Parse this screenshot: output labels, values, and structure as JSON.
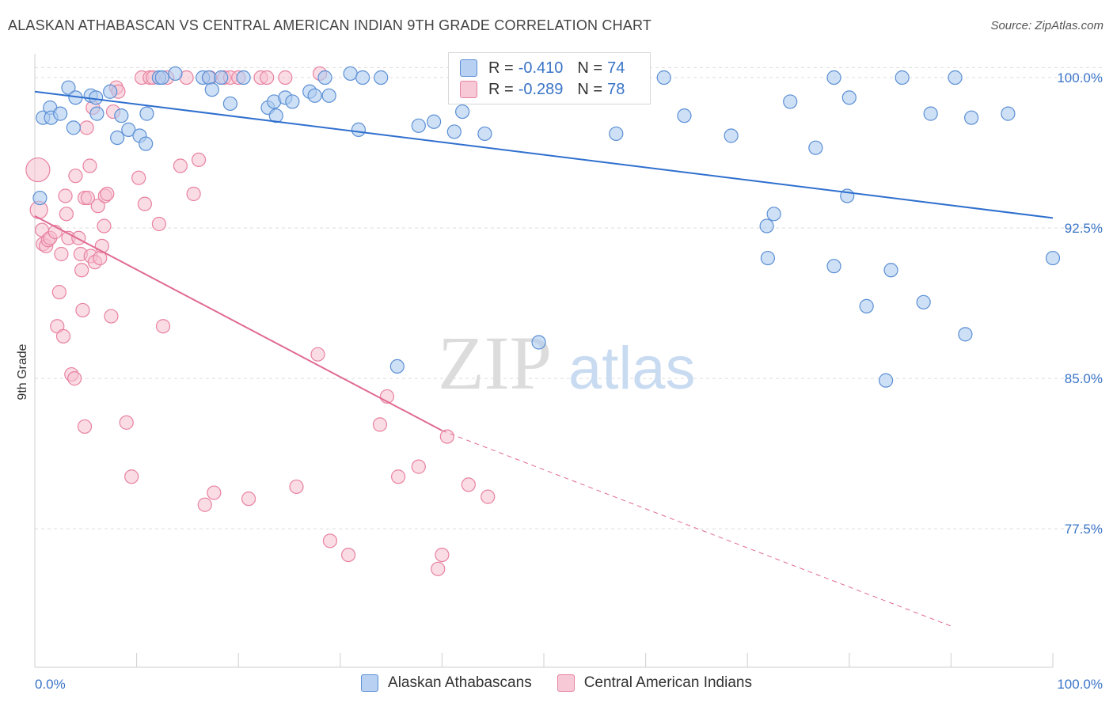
{
  "title": "ALASKAN ATHABASCAN VS CENTRAL AMERICAN INDIAN 9TH GRADE CORRELATION CHART",
  "source": "Source: ZipAtlas.com",
  "watermark": {
    "zip": "ZIP",
    "atlas": "atlas"
  },
  "colors": {
    "blue": "#5b8fd4",
    "blue_fill": "#aecbf0",
    "blue_line": "#2f6fce",
    "pink": "#e8829f",
    "pink_fill": "#f5c0d0",
    "pink_line": "#e06a92",
    "grid": "#dddddd",
    "axis_text": "#3a74c7"
  },
  "legend_top": {
    "r_label": "R =",
    "n_label": "N =",
    "blue": {
      "r": "-0.410",
      "n": "74"
    },
    "pink": {
      "r": "-0.289",
      "n": "78"
    }
  },
  "legend_bottom": {
    "blue": "Alaskan Athabascans",
    "pink": "Central American Indians"
  },
  "chart_data": {
    "type": "scatter",
    "title": "ALASKAN ATHABASCAN VS CENTRAL AMERICAN INDIAN 9TH GRADE CORRELATION CHART",
    "xlabel": "",
    "ylabel": "9th Grade",
    "xlim": [
      0,
      100
    ],
    "ylim": [
      70.6,
      101.5
    ],
    "x_tick_labels": [
      "0.0%",
      "100.0%"
    ],
    "y_ticks": [
      100.0,
      92.5,
      85.0,
      77.5
    ],
    "y_tick_labels": [
      "100.0%",
      "92.5%",
      "85.0%",
      "77.5%"
    ],
    "grid": true,
    "legend_position": "top-center",
    "series": [
      {
        "name": "Alaskan Athabascans",
        "r": -0.41,
        "n": 74,
        "trend": {
          "x": [
            0,
            100
          ],
          "y": [
            99.3,
            93.0
          ]
        },
        "points": [
          [
            0.5,
            94.0
          ],
          [
            0.8,
            98.0
          ],
          [
            1.5,
            98.5
          ],
          [
            1.6,
            98.0
          ],
          [
            2.5,
            98.2
          ],
          [
            3.3,
            99.5
          ],
          [
            3.8,
            97.5
          ],
          [
            4.0,
            99.0
          ],
          [
            5.5,
            99.1
          ],
          [
            6.0,
            99.0
          ],
          [
            6.1,
            98.2
          ],
          [
            7.4,
            99.3
          ],
          [
            8.1,
            97.0
          ],
          [
            8.5,
            98.1
          ],
          [
            9.2,
            97.4
          ],
          [
            10.3,
            97.1
          ],
          [
            10.9,
            96.7
          ],
          [
            11.0,
            98.2
          ],
          [
            12.2,
            100.0
          ],
          [
            12.5,
            100.0
          ],
          [
            13.8,
            100.2
          ],
          [
            16.5,
            100.0
          ],
          [
            17.1,
            100.0
          ],
          [
            17.4,
            99.4
          ],
          [
            18.3,
            100.0
          ],
          [
            19.2,
            98.7
          ],
          [
            20.5,
            100.0
          ],
          [
            22.9,
            98.5
          ],
          [
            23.5,
            98.8
          ],
          [
            23.7,
            98.1
          ],
          [
            24.6,
            99.0
          ],
          [
            25.3,
            98.8
          ],
          [
            27.0,
            99.3
          ],
          [
            27.5,
            99.1
          ],
          [
            28.5,
            100.0
          ],
          [
            28.9,
            99.1
          ],
          [
            31.0,
            100.2
          ],
          [
            31.8,
            97.4
          ],
          [
            32.2,
            100.0
          ],
          [
            34.0,
            100.0
          ],
          [
            35.6,
            85.6
          ],
          [
            37.7,
            97.6
          ],
          [
            39.2,
            97.8
          ],
          [
            41.2,
            97.3
          ],
          [
            42.0,
            98.3
          ],
          [
            44.2,
            97.2
          ],
          [
            49.5,
            86.8
          ],
          [
            51.2,
            100.0
          ],
          [
            53.0,
            100.0
          ],
          [
            57.1,
            97.2
          ],
          [
            59.0,
            99.5
          ],
          [
            61.8,
            100.0
          ],
          [
            63.8,
            98.1
          ],
          [
            68.4,
            97.1
          ],
          [
            72.0,
            91.0
          ],
          [
            71.9,
            92.6
          ],
          [
            72.6,
            93.2
          ],
          [
            74.2,
            98.8
          ],
          [
            76.7,
            96.5
          ],
          [
            78.5,
            90.6
          ],
          [
            78.5,
            100.0
          ],
          [
            79.8,
            94.1
          ],
          [
            80.0,
            99.0
          ],
          [
            81.7,
            88.6
          ],
          [
            83.6,
            84.9
          ],
          [
            84.1,
            90.4
          ],
          [
            85.2,
            100.0
          ],
          [
            87.3,
            88.8
          ],
          [
            88.0,
            98.2
          ],
          [
            90.4,
            100.0
          ],
          [
            91.4,
            87.2
          ],
          [
            92.0,
            98.0
          ],
          [
            95.6,
            98.2
          ],
          [
            100.0,
            91.0
          ]
        ]
      },
      {
        "name": "Central American Indians",
        "r": -0.289,
        "n": 78,
        "trend": {
          "x": [
            0,
            40
          ],
          "y": [
            93.1,
            82.4
          ]
        },
        "trend_extended": {
          "x": [
            40,
            100
          ],
          "y": [
            82.4,
            70.7
          ]
        },
        "points": [
          [
            0.3,
            95.4
          ],
          [
            0.4,
            93.4
          ],
          [
            0.7,
            92.4
          ],
          [
            0.8,
            91.7
          ],
          [
            1.1,
            91.6
          ],
          [
            1.3,
            91.9
          ],
          [
            1.5,
            92.0
          ],
          [
            2.0,
            92.3
          ],
          [
            2.2,
            87.6
          ],
          [
            2.4,
            89.3
          ],
          [
            2.6,
            91.2
          ],
          [
            2.8,
            87.1
          ],
          [
            3.0,
            94.1
          ],
          [
            3.1,
            93.2
          ],
          [
            3.3,
            92.0
          ],
          [
            3.6,
            85.2
          ],
          [
            3.9,
            85.0
          ],
          [
            4.0,
            95.1
          ],
          [
            4.3,
            92.0
          ],
          [
            4.5,
            91.2
          ],
          [
            4.6,
            90.4
          ],
          [
            4.7,
            88.4
          ],
          [
            4.9,
            82.6
          ],
          [
            4.9,
            94.0
          ],
          [
            5.1,
            97.5
          ],
          [
            5.2,
            94.0
          ],
          [
            5.4,
            95.6
          ],
          [
            5.5,
            91.1
          ],
          [
            5.7,
            98.5
          ],
          [
            5.9,
            90.8
          ],
          [
            6.2,
            93.6
          ],
          [
            6.4,
            91.0
          ],
          [
            6.6,
            91.6
          ],
          [
            6.8,
            92.6
          ],
          [
            6.9,
            94.1
          ],
          [
            7.1,
            94.2
          ],
          [
            7.5,
            88.1
          ],
          [
            7.7,
            98.3
          ],
          [
            8.0,
            99.5
          ],
          [
            8.2,
            99.3
          ],
          [
            9.0,
            82.8
          ],
          [
            9.5,
            80.1
          ],
          [
            10.2,
            95.0
          ],
          [
            10.5,
            100.0
          ],
          [
            10.8,
            93.7
          ],
          [
            11.3,
            100.0
          ],
          [
            11.6,
            100.0
          ],
          [
            12.2,
            92.7
          ],
          [
            12.6,
            87.6
          ],
          [
            13.0,
            100.0
          ],
          [
            14.3,
            95.6
          ],
          [
            14.9,
            100.0
          ],
          [
            15.6,
            94.2
          ],
          [
            16.1,
            95.9
          ],
          [
            16.7,
            78.7
          ],
          [
            17.2,
            100.0
          ],
          [
            17.6,
            79.3
          ],
          [
            18.6,
            100.0
          ],
          [
            19.2,
            100.0
          ],
          [
            20.0,
            100.0
          ],
          [
            21.0,
            79.0
          ],
          [
            22.2,
            100.0
          ],
          [
            22.8,
            100.0
          ],
          [
            24.6,
            100.0
          ],
          [
            25.7,
            79.6
          ],
          [
            27.8,
            86.2
          ],
          [
            28.0,
            100.2
          ],
          [
            29.0,
            76.9
          ],
          [
            30.8,
            76.2
          ],
          [
            33.9,
            82.7
          ],
          [
            34.6,
            84.1
          ],
          [
            35.7,
            80.1
          ],
          [
            37.7,
            80.6
          ],
          [
            39.6,
            75.5
          ],
          [
            40.0,
            76.2
          ],
          [
            40.5,
            82.1
          ],
          [
            42.6,
            79.7
          ],
          [
            44.5,
            79.1
          ]
        ]
      }
    ]
  },
  "tooltip_note": ""
}
